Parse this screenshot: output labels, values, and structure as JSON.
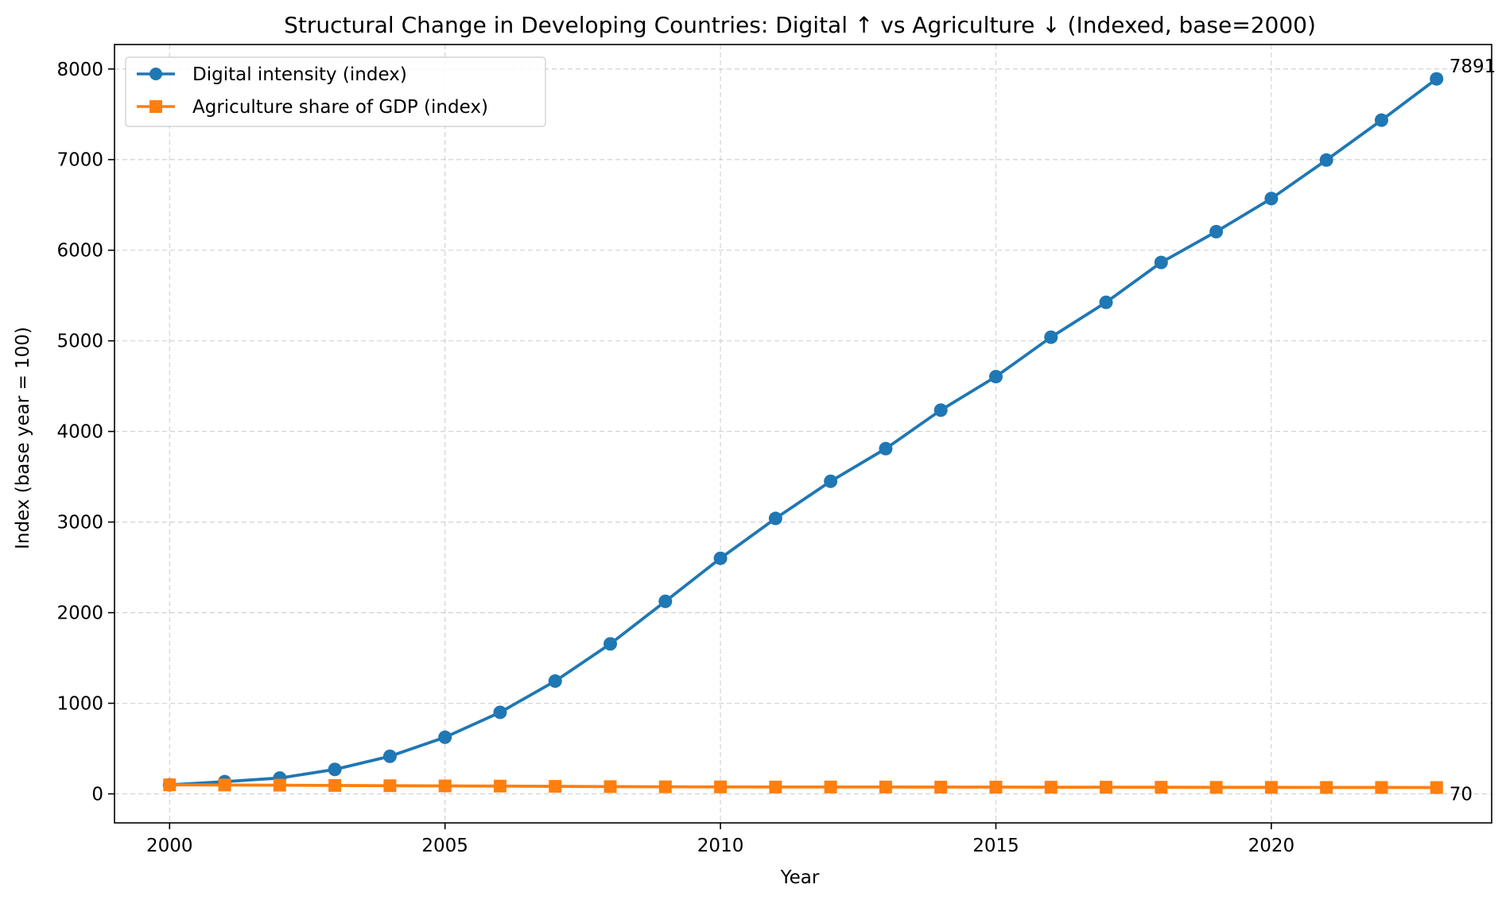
{
  "chart_data": {
    "type": "line",
    "title": "Structural Change in Developing Countries: Digital ↑ vs Agriculture ↓ (Indexed, base=2000)",
    "xlabel": "Year",
    "ylabel": "Index (base year = 100)",
    "xlim": [
      1999,
      2024
    ],
    "ylim": [
      -320,
      8270
    ],
    "xticks": [
      2000,
      2005,
      2010,
      2015,
      2020
    ],
    "yticks": [
      0,
      1000,
      2000,
      3000,
      4000,
      5000,
      6000,
      7000,
      8000
    ],
    "grid": true,
    "legend_position": "top-left",
    "x": [
      2000,
      2001,
      2002,
      2003,
      2004,
      2005,
      2006,
      2007,
      2008,
      2009,
      2010,
      2011,
      2012,
      2013,
      2014,
      2015,
      2016,
      2017,
      2018,
      2019,
      2020,
      2021,
      2022,
      2023
    ],
    "series": [
      {
        "name": "Digital intensity (index)",
        "color": "#1f77b4",
        "marker": "circle",
        "values": [
          100,
          135,
          175,
          270,
          415,
          625,
          900,
          1245,
          1655,
          2125,
          2600,
          3040,
          3450,
          3810,
          4235,
          4605,
          5040,
          5425,
          5865,
          6205,
          6570,
          6995,
          7435,
          7891
        ],
        "end_label": "7891"
      },
      {
        "name": "Agriculture share of GDP (index)",
        "color": "#ff7f0e",
        "marker": "square",
        "values": [
          100,
          98,
          96,
          93,
          90,
          88,
          86,
          83,
          80,
          78,
          77,
          76,
          76,
          76,
          75,
          75,
          74,
          74,
          73,
          72,
          72,
          71,
          71,
          70
        ],
        "end_label": "70"
      }
    ]
  }
}
